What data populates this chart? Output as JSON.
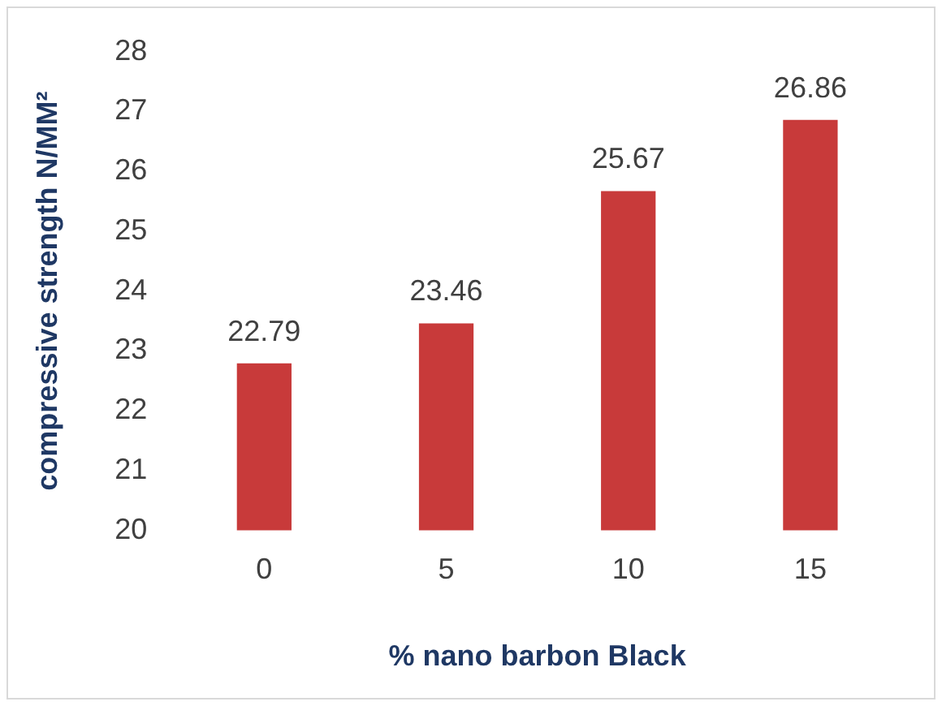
{
  "chart_data": {
    "type": "bar",
    "categories": [
      "0",
      "5",
      "10",
      "15"
    ],
    "values": [
      22.79,
      23.46,
      25.67,
      26.86
    ],
    "color": "#c83a3a",
    "ylim": [
      20,
      28
    ],
    "yticks": [
      20,
      21,
      22,
      23,
      24,
      25,
      26,
      27,
      28
    ],
    "grid": false,
    "legend": false,
    "data_labels": true,
    "xlabel": "% nano barbon Black",
    "ylabel": "compressive strength N/MM²"
  }
}
